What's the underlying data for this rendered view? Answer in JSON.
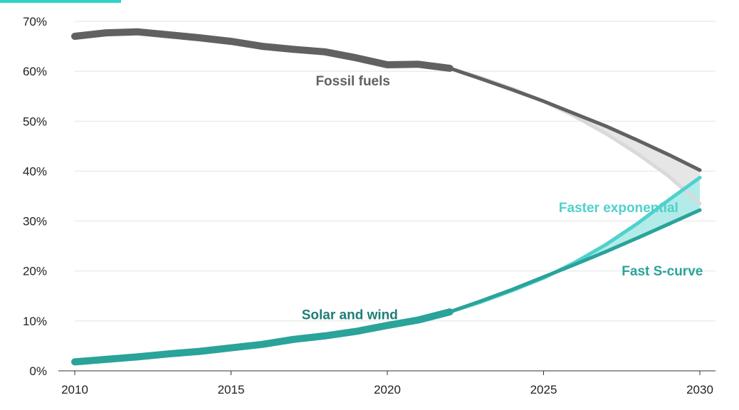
{
  "chart_data": {
    "type": "line",
    "title": "",
    "xlabel": "",
    "ylabel": "",
    "xlim": [
      2010,
      2030
    ],
    "ylim": [
      0,
      70
    ],
    "x_ticks": [
      "2010",
      "2015",
      "2020",
      "2025",
      "2030"
    ],
    "y_ticks": [
      "0%",
      "10%",
      "20%",
      "30%",
      "40%",
      "50%",
      "60%",
      "70%"
    ],
    "grid": true,
    "colors": {
      "fossil": "#616161",
      "fossil_scenario": "#d9d9d9",
      "solar": "#2aa39a",
      "solar_exponential": "#4fd1cc",
      "solar_band": "#b3ebe8",
      "fossil_band": "#e6e6e6",
      "accent": "#2ed3c6"
    },
    "labels": {
      "fossil": "Fossil fuels",
      "solar": "Solar and wind",
      "exponential": "Faster exponential",
      "scurve": "Fast S-curve"
    },
    "series": [
      {
        "name": "Fossil fuels",
        "x": [
          2010,
          2011,
          2012,
          2013,
          2014,
          2015,
          2016,
          2017,
          2018,
          2019,
          2020,
          2021,
          2022
        ],
        "y": [
          67.0,
          67.7,
          67.9,
          67.3,
          66.7,
          66.0,
          65.0,
          64.4,
          63.9,
          62.7,
          61.3,
          61.4,
          60.6
        ]
      },
      {
        "name": "Fossil fuels",
        "x": [
          2022,
          2023,
          2024,
          2025,
          2026,
          2027,
          2028,
          2029,
          2030
        ],
        "y": [
          60.6,
          58.5,
          56.3,
          54.0,
          51.5,
          49.0,
          46.2,
          43.3,
          40.2
        ]
      },
      {
        "name": "",
        "x": [
          2022,
          2023,
          2024,
          2025,
          2026,
          2027,
          2028,
          2029,
          2030
        ],
        "y": [
          60.6,
          58.7,
          56.5,
          54.0,
          51.0,
          47.5,
          43.5,
          39.0,
          33.5
        ]
      },
      {
        "name": "Solar and wind",
        "x": [
          2010,
          2011,
          2012,
          2013,
          2014,
          2015,
          2016,
          2017,
          2018,
          2019,
          2020,
          2021,
          2022
        ],
        "y": [
          1.8,
          2.3,
          2.8,
          3.4,
          3.9,
          4.6,
          5.3,
          6.3,
          7.0,
          7.9,
          9.1,
          10.2,
          11.8
        ]
      },
      {
        "name": "Fast S-curve",
        "x": [
          2022,
          2023,
          2024,
          2025,
          2026,
          2027,
          2028,
          2029,
          2030
        ],
        "y": [
          11.8,
          14.0,
          16.3,
          18.8,
          21.3,
          23.9,
          26.6,
          29.4,
          32.2
        ]
      },
      {
        "name": "Faster exponential",
        "x": [
          2022,
          2023,
          2024,
          2025,
          2026,
          2027,
          2028,
          2029,
          2030
        ],
        "y": [
          11.8,
          13.8,
          16.1,
          18.6,
          21.7,
          25.3,
          29.5,
          34.2,
          38.7
        ]
      }
    ],
    "annotations": [
      {
        "text": "Fossil fuels",
        "x": 2018.9,
        "y": 58.2
      },
      {
        "text": "Solar and wind",
        "x": 2018.8,
        "y": 11.3
      },
      {
        "text": "Faster exponential",
        "x": 2027.4,
        "y": 32.8
      },
      {
        "text": "Fast S-curve",
        "x": 2028.8,
        "y": 20.1
      }
    ]
  }
}
